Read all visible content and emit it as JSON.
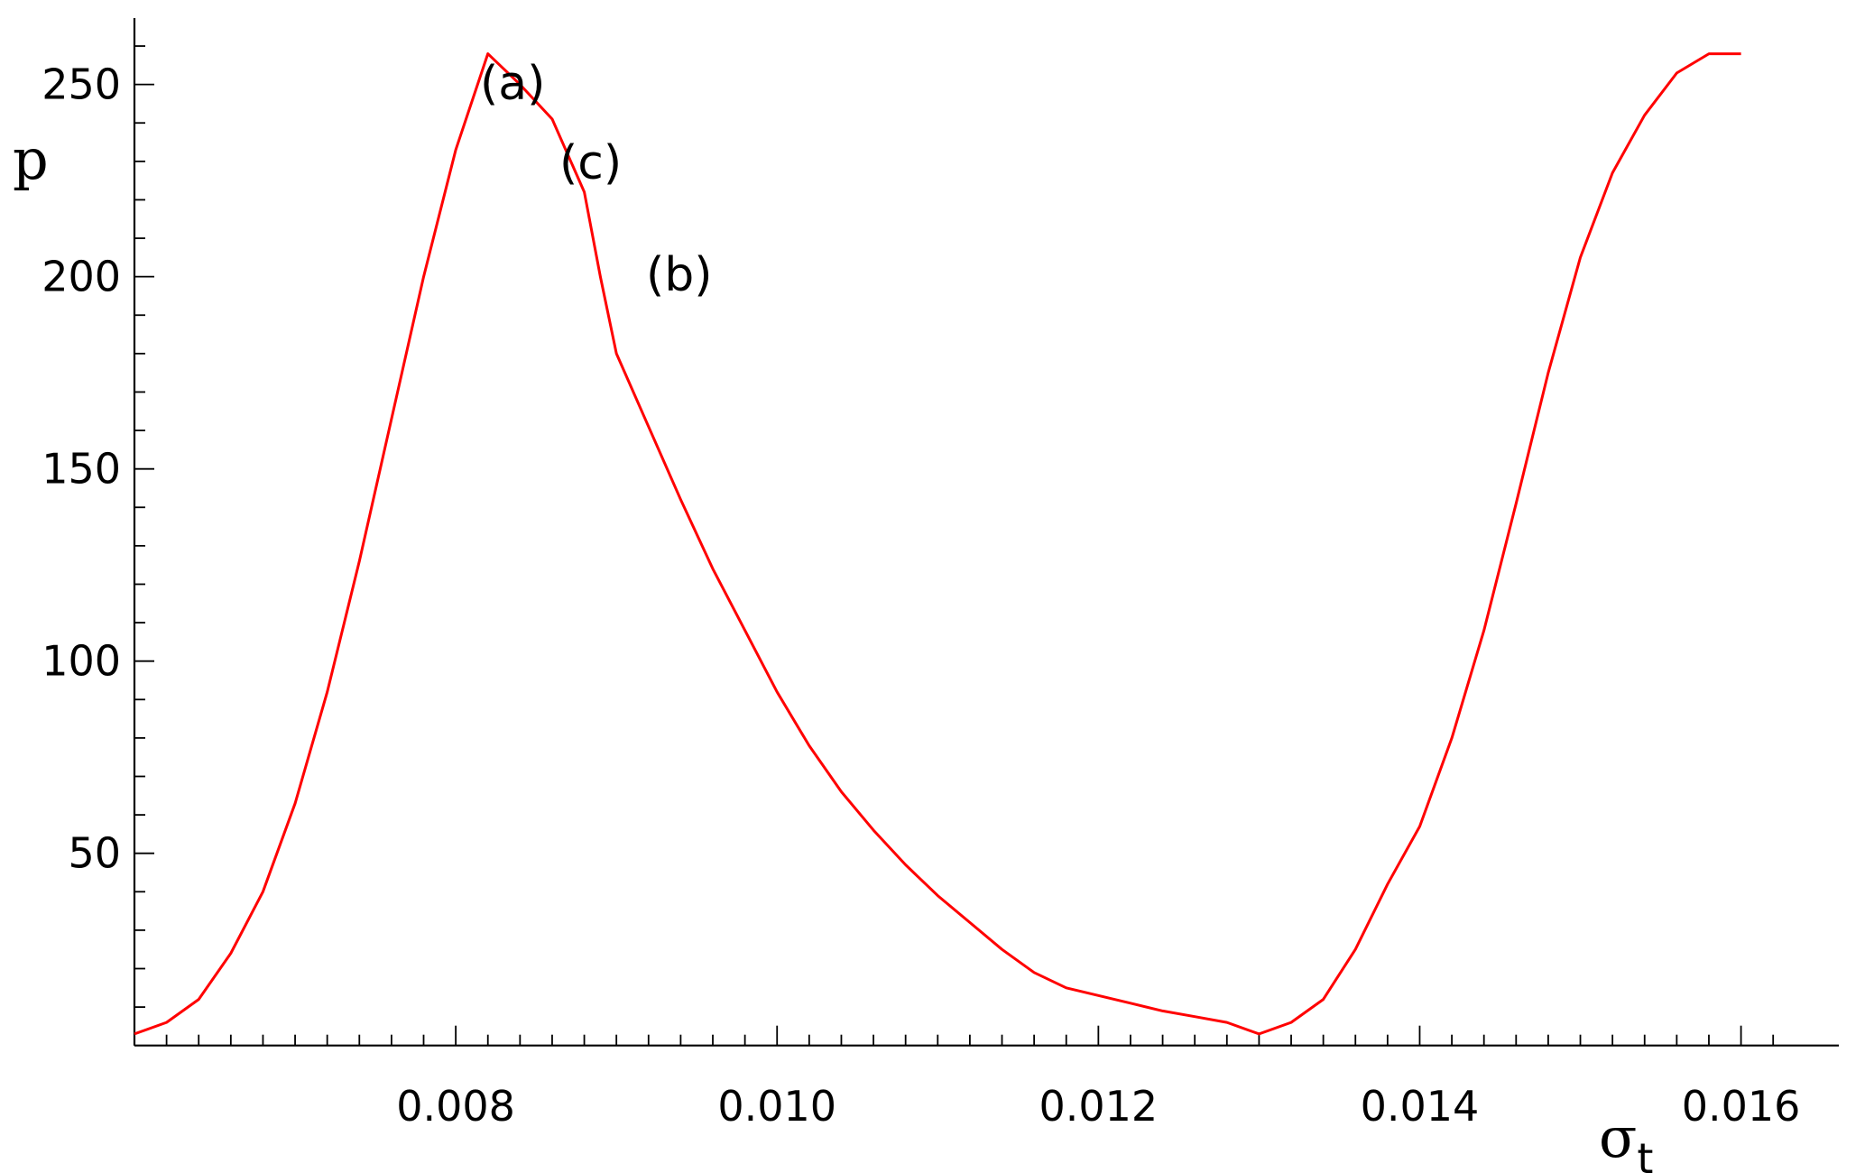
{
  "chart_data": {
    "type": "line",
    "title": "",
    "xlabel": "σt",
    "xlabel_main": "σ",
    "xlabel_sub": "t",
    "ylabel": "p",
    "xlim": [
      0.006,
      0.0163
    ],
    "ylim": [
      -5,
      264
    ],
    "xticks": [
      0.008,
      0.01,
      0.012,
      0.014,
      0.016
    ],
    "xtick_labels": [
      "0.008",
      "0.010",
      "0.012",
      "0.014",
      "0.016"
    ],
    "yticks": [
      50,
      100,
      150,
      200,
      250
    ],
    "ytick_labels": [
      "50",
      "100",
      "150",
      "200",
      "250"
    ],
    "grid": false,
    "legend": "none",
    "series": [
      {
        "name": "(a)",
        "color": "#ff0000",
        "x": [
          0.006,
          0.0062,
          0.0064,
          0.0066,
          0.0068,
          0.007,
          0.0072,
          0.0074,
          0.0076,
          0.0078,
          0.008,
          0.0082,
          0.0084,
          0.0086,
          0.0088,
          0.0089,
          0.009,
          0.0092,
          0.0094,
          0.0096,
          0.0098,
          0.01,
          0.0102,
          0.0104,
          0.0106,
          0.0108,
          0.011,
          0.0112,
          0.0114,
          0.0116,
          0.0118,
          0.012,
          0.0122,
          0.0124,
          0.0126,
          0.0128,
          0.013,
          0.0132,
          0.0134,
          0.0136,
          0.0138,
          0.014,
          0.0142,
          0.0144,
          0.0146,
          0.0148,
          0.015,
          0.0152,
          0.0154,
          0.0156,
          0.0158,
          0.016
        ],
        "y": [
          3,
          6,
          12,
          24,
          40,
          63,
          92,
          126,
          163,
          200,
          233,
          258,
          250,
          241,
          222,
          200,
          180,
          161,
          142,
          124,
          108,
          92,
          78,
          66,
          56,
          47,
          39,
          32,
          25,
          19,
          15,
          13,
          11,
          9,
          7.5,
          6,
          3,
          6,
          12,
          25,
          42,
          57,
          80,
          108,
          141,
          175,
          205,
          227,
          242,
          253,
          258,
          258
        ]
      }
    ]
  },
  "curves": [
    {
      "name": "(a)",
      "color": "#ff0000",
      "x": [
        0.006,
        0.0062,
        0.0064,
        0.0066,
        0.0068,
        0.007,
        0.0072,
        0.0074,
        0.0076,
        0.0078,
        0.008,
        0.0082,
        0.0084,
        0.0086,
        0.0088,
        0.0089,
        0.009,
        0.0092,
        0.0094,
        0.0096,
        0.0098,
        0.01,
        0.0102,
        0.0104,
        0.0106,
        0.0108,
        0.011,
        0.0112,
        0.0114,
        0.0116,
        0.0118,
        0.012,
        0.0122,
        0.0124,
        0.0126,
        0.0128,
        0.013,
        0.0132,
        0.0134,
        0.0136,
        0.0138,
        0.014,
        0.0142,
        0.0144,
        0.0146,
        0.0148,
        0.015,
        0.0152,
        0.0154,
        0.0156,
        0.0158,
        0.016
      ],
      "y": [
        3,
        6,
        12,
        24,
        40,
        63,
        92,
        126,
        163,
        200,
        233,
        258,
        250,
        241,
        222,
        200,
        180,
        161,
        142,
        124,
        108,
        92,
        78,
        66,
        56,
        47,
        39,
        32,
        25,
        19,
        15,
        13,
        11,
        9,
        7.5,
        6,
        3,
        6,
        12,
        25,
        42,
        57,
        80,
        108,
        141,
        175,
        205,
        227,
        242,
        253,
        258,
        258
      ]
    }
  ]
}
